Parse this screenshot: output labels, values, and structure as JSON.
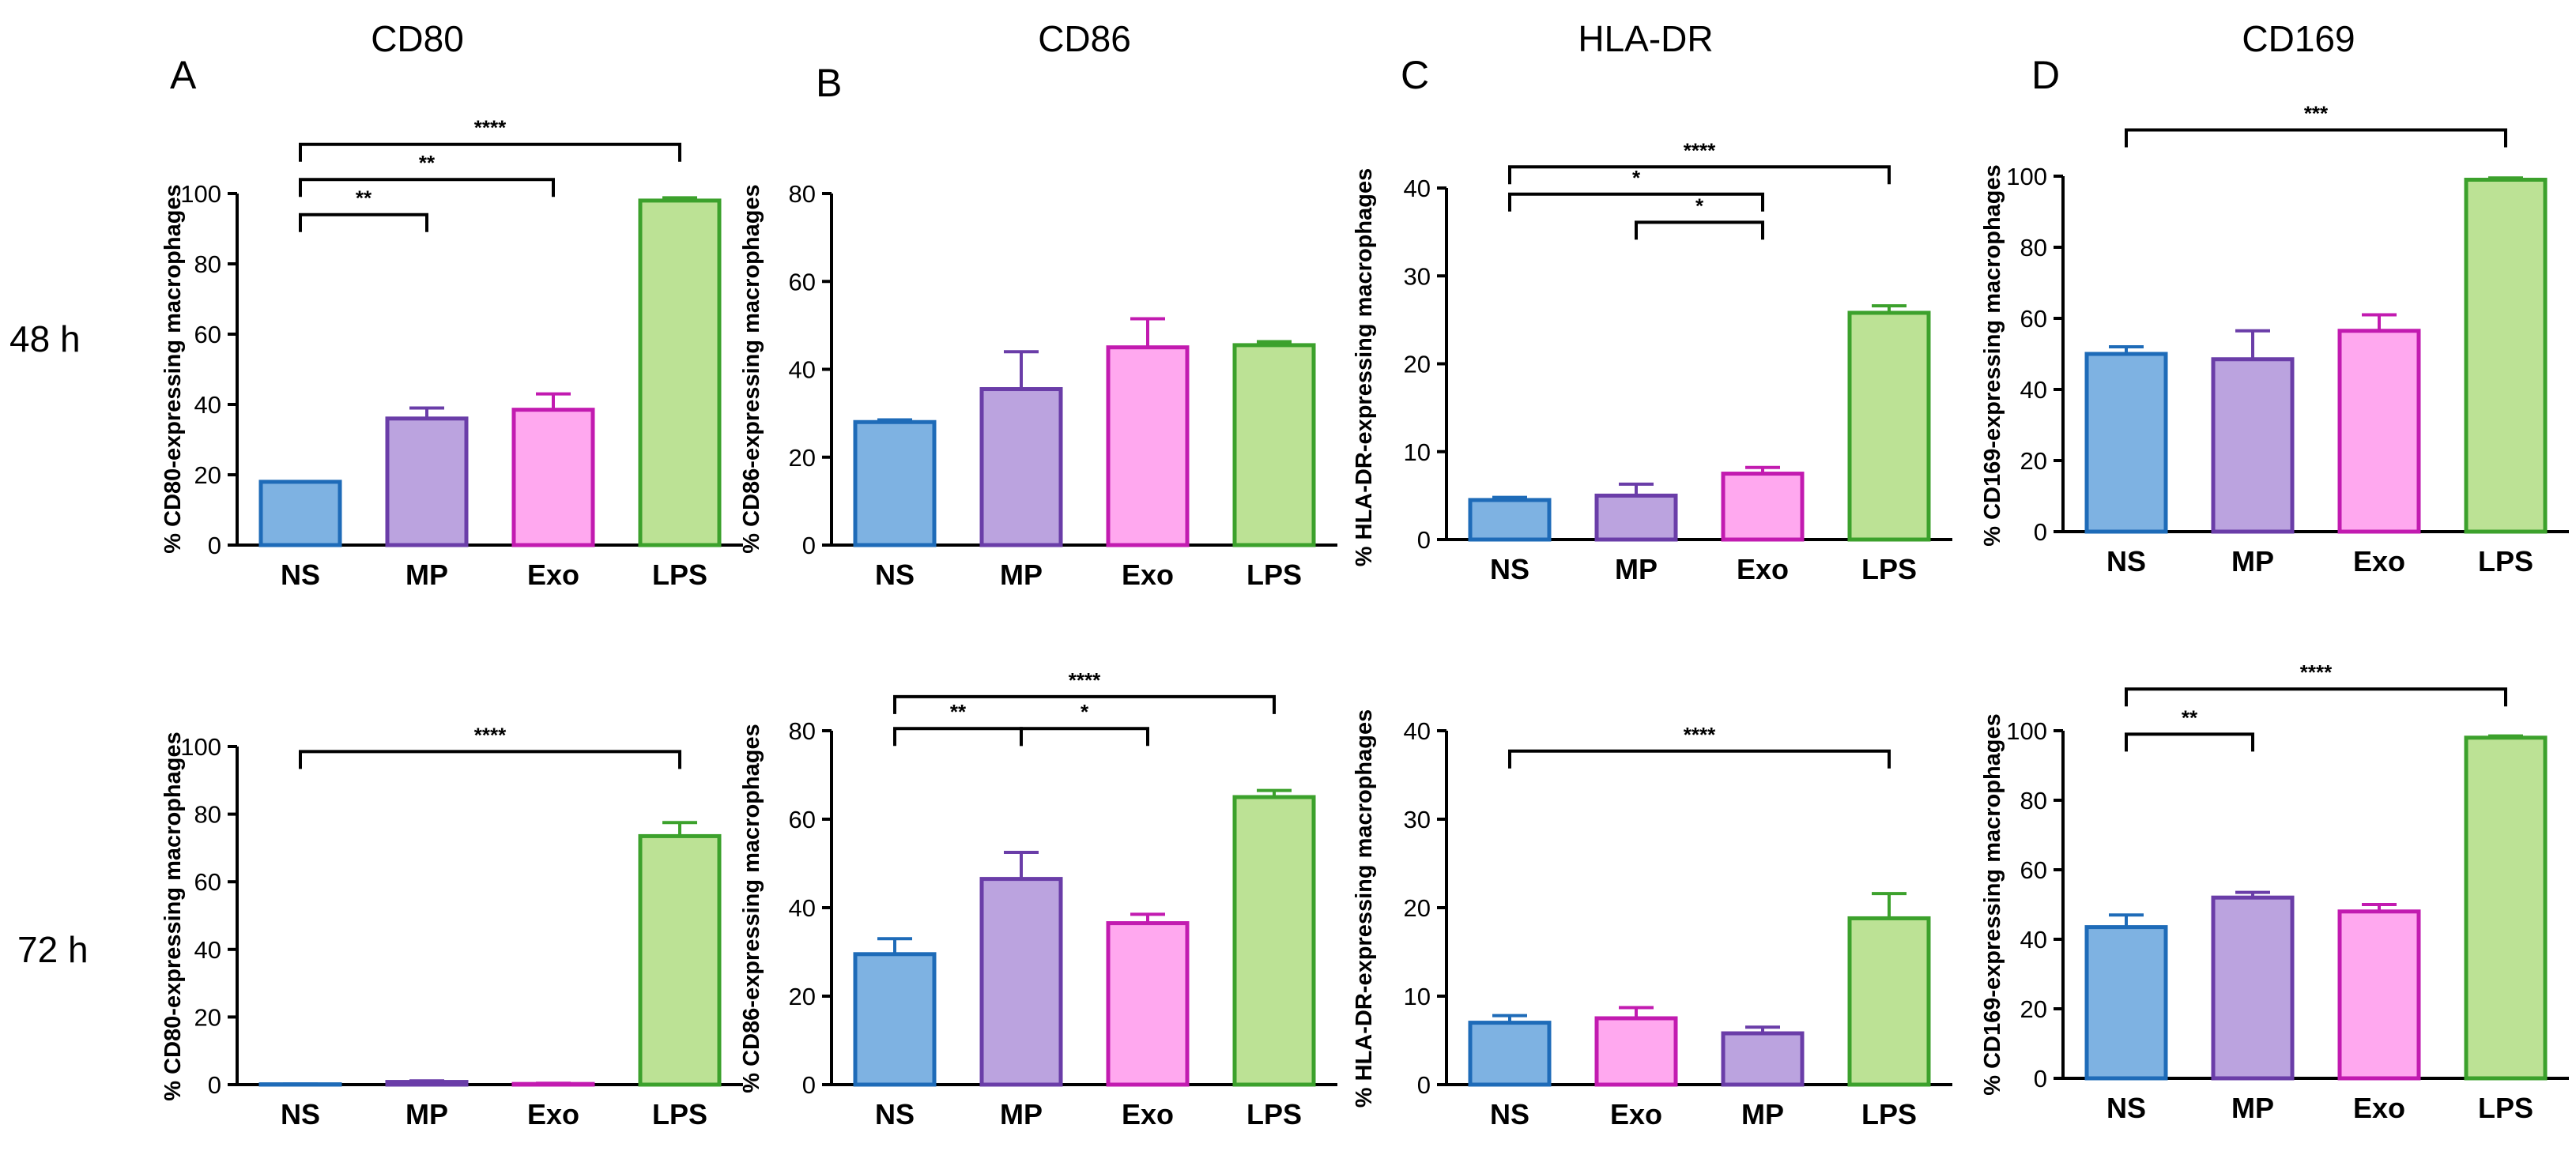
{
  "row_labels": [
    "48 h",
    "72 h"
  ],
  "panels": [
    {
      "letter": "A",
      "title": "CD80"
    },
    {
      "letter": "B",
      "title": "CD86"
    },
    {
      "letter": "C",
      "title": "HLA-DR"
    },
    {
      "letter": "D",
      "title": "CD169"
    }
  ],
  "colors": {
    "NS": {
      "fill": "#7EB2E2",
      "stroke": "#1E6BB8"
    },
    "MP": {
      "fill": "#BBA3DF",
      "stroke": "#6A3DA8"
    },
    "Exo": {
      "fill": "#FFA8EF",
      "stroke": "#C21BB0"
    },
    "LPS": {
      "fill": "#BCE295",
      "stroke": "#3CA12C"
    }
  },
  "chart_data": [
    {
      "id": "A-48h",
      "type": "bar",
      "panel": "A",
      "row": "48 h",
      "ylabel": "% CD80-expressing macrophages",
      "ylim": [
        0,
        100
      ],
      "yticks": [
        0,
        20,
        40,
        60,
        80,
        100
      ],
      "categories": [
        "NS",
        "MP",
        "Exo",
        "LPS"
      ],
      "values": [
        18,
        36,
        38.5,
        98
      ],
      "errors": [
        0,
        3,
        4.5,
        0.8
      ],
      "significance": [
        {
          "from": "NS",
          "to": "MP",
          "label": "**",
          "y": 94
        },
        {
          "from": "NS",
          "to": "Exo",
          "label": "**",
          "y": 104
        },
        {
          "from": "NS",
          "to": "LPS",
          "label": "****",
          "y": 114
        }
      ]
    },
    {
      "id": "B-48h",
      "type": "bar",
      "panel": "B",
      "row": "48 h",
      "ylabel": "% CD86-expressing macrophages",
      "ylim": [
        0,
        80
      ],
      "yticks": [
        0,
        20,
        40,
        60,
        80
      ],
      "categories": [
        "NS",
        "MP",
        "Exo",
        "LPS"
      ],
      "values": [
        28,
        35.5,
        45,
        45.5
      ],
      "errors": [
        0.5,
        8.5,
        6.5,
        0.8
      ],
      "significance": []
    },
    {
      "id": "C-48h",
      "type": "bar",
      "panel": "C",
      "row": "48 h",
      "ylabel": "% HLA-DR-expressing macrophages",
      "ylim": [
        0,
        40
      ],
      "yticks": [
        0,
        10,
        20,
        30,
        40
      ],
      "categories": [
        "NS",
        "MP",
        "Exo",
        "LPS"
      ],
      "values": [
        4.5,
        5,
        7.5,
        25.8
      ],
      "errors": [
        0.3,
        1.3,
        0.7,
        0.8
      ],
      "significance": [
        {
          "from": "MP",
          "to": "Exo",
          "label": "*",
          "y": 36.1
        },
        {
          "from": "NS",
          "to": "Exo",
          "label": "*",
          "y": 39.3
        },
        {
          "from": "NS",
          "to": "LPS",
          "label": "****",
          "y": 42.4
        }
      ]
    },
    {
      "id": "D-48h",
      "type": "bar",
      "panel": "D",
      "row": "48 h",
      "ylabel": "% CD169-expressing macrophages",
      "ylim": [
        0,
        100
      ],
      "yticks": [
        0,
        20,
        40,
        60,
        80,
        100
      ],
      "categories": [
        "NS",
        "MP",
        "Exo",
        "LPS"
      ],
      "values": [
        50,
        48.5,
        56.5,
        99
      ],
      "errors": [
        2,
        8,
        4.5,
        0.5
      ],
      "significance": [
        {
          "from": "NS",
          "to": "LPS",
          "label": "***",
          "y": 113
        }
      ]
    },
    {
      "id": "A-72h",
      "type": "bar",
      "panel": "A",
      "row": "72 h",
      "ylabel": "% CD80-expressing macrophages",
      "ylim": [
        0,
        100
      ],
      "yticks": [
        0,
        20,
        40,
        60,
        80,
        100
      ],
      "categories": [
        "NS",
        "MP",
        "Exo",
        "LPS"
      ],
      "values": [
        0.1,
        0.8,
        0.2,
        73.5
      ],
      "errors": [
        0.1,
        0.3,
        0.2,
        4
      ],
      "significance": [
        {
          "from": "NS",
          "to": "LPS",
          "label": "****",
          "y": 98.5
        }
      ]
    },
    {
      "id": "B-72h",
      "type": "bar",
      "panel": "B",
      "row": "72 h",
      "ylabel": "% CD86-expressing macrophages",
      "ylim": [
        0,
        80
      ],
      "yticks": [
        0,
        20,
        40,
        60,
        80
      ],
      "categories": [
        "NS",
        "MP",
        "Exo",
        "LPS"
      ],
      "values": [
        29.5,
        46.5,
        36.5,
        65
      ],
      "errors": [
        3.5,
        6,
        2,
        1.5
      ],
      "significance": [
        {
          "from": "NS",
          "to": "MP",
          "label": "**",
          "y": 80.5
        },
        {
          "from": "MP",
          "to": "Exo",
          "label": "*",
          "y": 80.5
        },
        {
          "from": "NS",
          "to": "LPS",
          "label": "****",
          "y": 87.7
        }
      ]
    },
    {
      "id": "C-72h",
      "type": "bar",
      "panel": "C",
      "row": "72 h",
      "ylabel": "% HLA-DR-expressing macrophages",
      "ylim": [
        0,
        40
      ],
      "yticks": [
        0,
        10,
        20,
        30,
        40
      ],
      "categories": [
        "NS",
        "Exo",
        "MP",
        "LPS"
      ],
      "values": [
        7,
        7.5,
        5.8,
        18.8
      ],
      "errors": [
        0.8,
        1.2,
        0.7,
        2.8
      ],
      "significance": [
        {
          "from": "NS",
          "to": "LPS",
          "label": "****",
          "y": 37.7
        }
      ]
    },
    {
      "id": "D-72h",
      "type": "bar",
      "panel": "D",
      "row": "72 h",
      "ylabel": "% CD169-expressing macrophages",
      "ylim": [
        0,
        100
      ],
      "yticks": [
        0,
        20,
        40,
        60,
        80,
        100
      ],
      "categories": [
        "NS",
        "MP",
        "Exo",
        "LPS"
      ],
      "values": [
        43.5,
        52,
        48,
        98
      ],
      "errors": [
        3.5,
        1.5,
        2,
        0.5
      ],
      "significance": [
        {
          "from": "NS",
          "to": "MP",
          "label": "**",
          "y": 99
        },
        {
          "from": "NS",
          "to": "LPS",
          "label": "****",
          "y": 112
        }
      ]
    }
  ]
}
